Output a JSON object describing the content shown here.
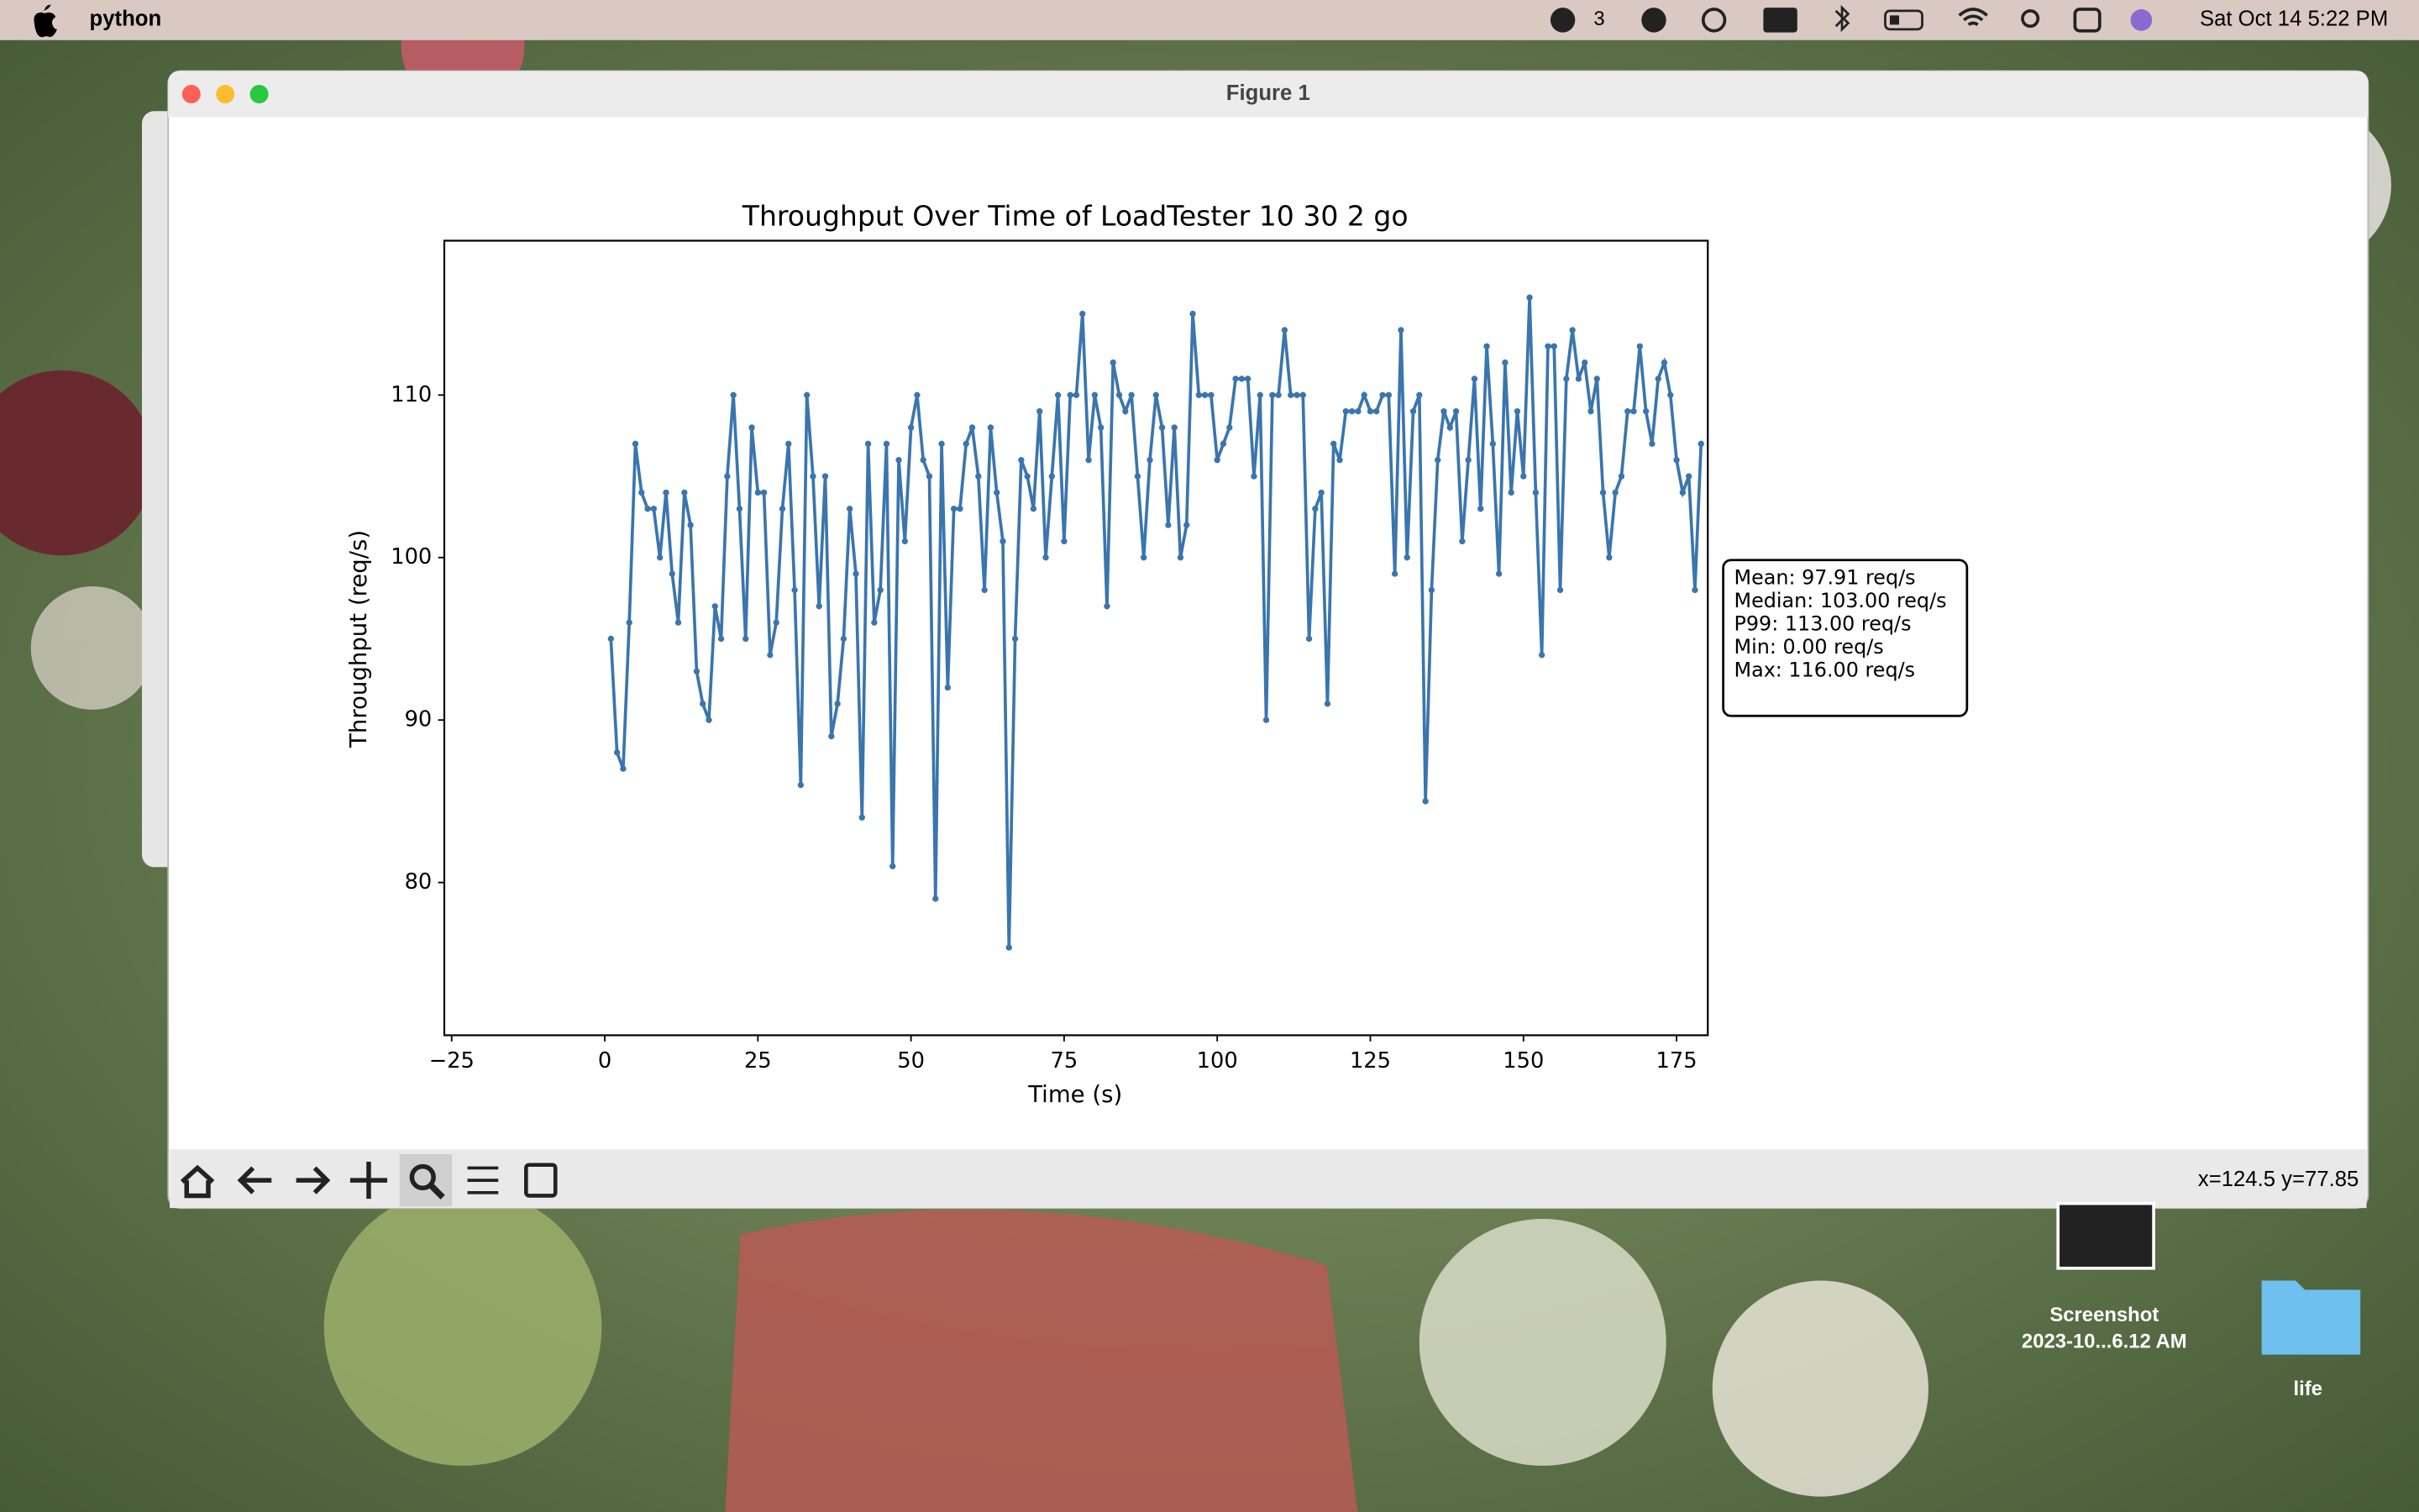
{
  "menu_bar": {
    "app": "python",
    "badge": "3",
    "clock": "Sat Oct 14  5:22 PM"
  },
  "window": {
    "title": "Figure 1",
    "status": "x=124.5 y=77.85"
  },
  "chart_data": {
    "type": "line",
    "title": "Throughput Over Time of LoadTester 10 30 2 go",
    "x_label": "Time (s)",
    "y_label": "Throughput (req/s)",
    "x": [
      1,
      2,
      3,
      4,
      5,
      6,
      7,
      8,
      9,
      10,
      11,
      12,
      13,
      14,
      15,
      16,
      17,
      18,
      19,
      20,
      21,
      22,
      23,
      24,
      25,
      26,
      27,
      28,
      29,
      30,
      31,
      32,
      33,
      34,
      35,
      36,
      37,
      38,
      39,
      40,
      41,
      42,
      43,
      44,
      45,
      46,
      47,
      48,
      49,
      50,
      51,
      52,
      53,
      54,
      55,
      56,
      57,
      58,
      59,
      60,
      61,
      62,
      63,
      64,
      65,
      66,
      67,
      68,
      69,
      70,
      71,
      72,
      73,
      74,
      75,
      76,
      77,
      78,
      79,
      80,
      81,
      82,
      83,
      84,
      85,
      86,
      87,
      88,
      89,
      90,
      91,
      92,
      93,
      94,
      95,
      96,
      97,
      98,
      99,
      100,
      101,
      102,
      103,
      104,
      105,
      106,
      107,
      108,
      109,
      110,
      111,
      112,
      113,
      114,
      115,
      116,
      117,
      118,
      119,
      120,
      121,
      122,
      123,
      124,
      125,
      126,
      127,
      128,
      129,
      130,
      131,
      132,
      133,
      134,
      135,
      136,
      137,
      138,
      139,
      140,
      141,
      142,
      143,
      144,
      145,
      146,
      147,
      148,
      149,
      150,
      151,
      152,
      153,
      154,
      155,
      156,
      157,
      158,
      159,
      160,
      161,
      162,
      163,
      164,
      165,
      166,
      167,
      168,
      169,
      170,
      171,
      172,
      173,
      174,
      175,
      176,
      177,
      178,
      179
    ],
    "values": [
      95,
      88,
      87,
      96,
      107,
      104,
      103,
      103,
      100,
      104,
      99,
      96,
      104,
      102,
      93,
      91,
      90,
      97,
      95,
      105,
      110,
      103,
      95,
      108,
      104,
      104,
      94,
      96,
      103,
      107,
      98,
      86,
      110,
      105,
      97,
      105,
      89,
      91,
      95,
      103,
      99,
      84,
      107,
      96,
      98,
      107,
      81,
      106,
      101,
      108,
      110,
      106,
      105,
      79,
      107,
      92,
      103,
      103,
      107,
      108,
      105,
      98,
      108,
      104,
      101,
      76,
      95,
      106,
      105,
      103,
      109,
      100,
      105,
      110,
      101,
      110,
      110,
      115,
      106,
      110,
      108,
      97,
      112,
      110,
      109,
      110,
      105,
      100,
      106,
      110,
      108,
      102,
      108,
      100,
      102,
      115,
      110,
      110,
      110,
      106,
      107,
      108,
      111,
      111,
      111,
      105,
      110,
      90,
      110,
      110,
      114,
      110,
      110,
      110,
      95,
      103,
      104,
      91,
      107,
      106,
      109,
      109,
      109,
      110,
      109,
      109,
      110,
      110,
      99,
      114,
      100,
      109,
      110,
      85,
      98,
      106,
      109,
      108,
      109,
      101,
      106,
      111,
      103,
      113,
      107,
      99,
      112,
      104,
      109,
      105,
      116,
      104,
      94,
      113,
      113,
      98,
      111,
      114,
      111,
      112,
      109,
      111,
      104,
      100,
      104,
      105,
      109,
      109,
      113,
      109,
      107,
      111,
      112,
      110,
      106,
      104,
      105,
      98,
      107
    ],
    "color": "#3a75ae",
    "xlim": [
      -26.2,
      180.1
    ],
    "ylim": [
      70.6,
      119.5
    ],
    "xticks": [
      {
        "value": -25,
        "label": "−25"
      },
      0,
      25,
      50,
      75,
      100,
      125,
      150,
      175
    ],
    "yticks": [
      80,
      90,
      100,
      110
    ],
    "annotation": [
      "Mean: 97.91 req/s",
      "Median: 103.00 req/s",
      "P99: 113.00 req/s",
      "Min: 0.00 req/s",
      "Max: 116.00 req/s"
    ]
  },
  "desktop": {
    "icons": [
      {
        "label": [
          "Screenshot",
          "2023-10...6.12 AM"
        ]
      },
      {
        "label": [
          "life"
        ]
      }
    ]
  }
}
